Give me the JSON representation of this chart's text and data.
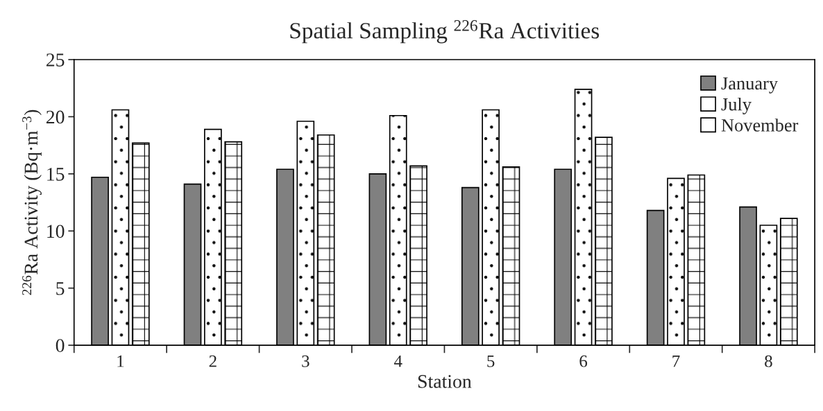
{
  "chart_data": {
    "type": "bar",
    "title": "Spatial Sampling $^{226}$Ra Activities",
    "xlabel": "Station",
    "ylabel": "$^{226}$Ra Activity (Bq·m$^{−3}$)",
    "categories": [
      "1",
      "2",
      "3",
      "4",
      "5",
      "6",
      "7",
      "8"
    ],
    "series": [
      {
        "name": "January",
        "color": "#808080",
        "values": [
          14.7,
          14.1,
          15.4,
          15.0,
          13.8,
          15.4,
          11.8,
          12.1
        ]
      },
      {
        "name": "July",
        "color": "#ffffff",
        "values": [
          20.6,
          18.9,
          19.6,
          20.1,
          20.6,
          22.4,
          14.6,
          10.5
        ]
      },
      {
        "name": "November",
        "color": "#ffffff",
        "values": [
          17.7,
          17.8,
          18.4,
          15.7,
          15.6,
          18.2,
          14.9,
          11.1
        ]
      }
    ],
    "ylim": [
      0,
      25
    ],
    "yticks": [
      0,
      5,
      10,
      15,
      20,
      25
    ],
    "grid": false,
    "legend": "top right"
  }
}
